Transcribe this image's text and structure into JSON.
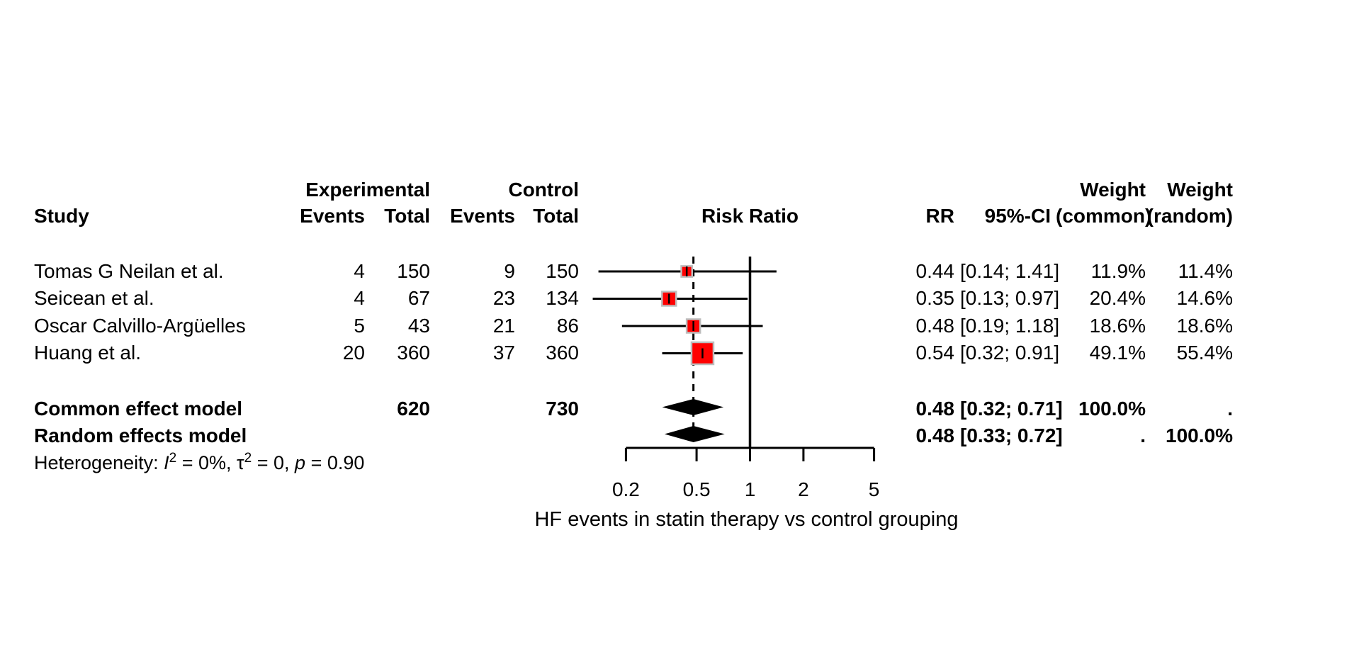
{
  "chart_data": {
    "type": "forest",
    "xlabel": "HF events in statin therapy vs control grouping",
    "x_ticks": [
      0.2,
      0.5,
      1,
      2,
      5
    ],
    "x_scale": "log",
    "null_value": 1,
    "pooled_rr": 0.48,
    "headers": {
      "study": "Study",
      "experimental": "Experimental",
      "control": "Control",
      "events": "Events",
      "total": "Total",
      "risk_ratio": "Risk Ratio",
      "rr": "RR",
      "ci": "95%-CI",
      "weight": "Weight",
      "weight_common_sub": "(common)",
      "weight_random_sub": "(random)"
    },
    "studies": [
      {
        "name": "Tomas G Neilan et al.",
        "exp_events": "4",
        "exp_total": "150",
        "ctrl_events": "9",
        "ctrl_total": "150",
        "rr": 0.44,
        "ci_lo": 0.14,
        "ci_hi": 1.41,
        "rr_text": "0.44",
        "ci_text": "[0.14; 1.41]",
        "weight_common": "11.9%",
        "weight_random": "11.4%",
        "weight_common_value": 11.9
      },
      {
        "name": "Seicean et al.",
        "exp_events": "4",
        "exp_total": "67",
        "ctrl_events": "23",
        "ctrl_total": "134",
        "rr": 0.35,
        "ci_lo": 0.13,
        "ci_hi": 0.97,
        "rr_text": "0.35",
        "ci_text": "[0.13; 0.97]",
        "weight_common": "20.4%",
        "weight_random": "14.6%",
        "weight_common_value": 20.4
      },
      {
        "name": "Oscar Calvillo-Argüelles",
        "exp_events": "5",
        "exp_total": "43",
        "ctrl_events": "21",
        "ctrl_total": "86",
        "rr": 0.48,
        "ci_lo": 0.19,
        "ci_hi": 1.18,
        "rr_text": "0.48",
        "ci_text": "[0.19; 1.18]",
        "weight_common": "18.6%",
        "weight_random": "18.6%",
        "weight_common_value": 18.6
      },
      {
        "name": "Huang et al.",
        "exp_events": "20",
        "exp_total": "360",
        "ctrl_events": "37",
        "ctrl_total": "360",
        "rr": 0.54,
        "ci_lo": 0.32,
        "ci_hi": 0.91,
        "rr_text": "0.54",
        "ci_text": "[0.32; 0.91]",
        "weight_common": "49.1%",
        "weight_random": "55.4%",
        "weight_common_value": 49.1
      }
    ],
    "summary": [
      {
        "name": "Common effect model",
        "exp_total": "620",
        "ctrl_total": "730",
        "rr": 0.48,
        "ci_lo": 0.32,
        "ci_hi": 0.71,
        "rr_text": "0.48",
        "ci_text": "[0.32; 0.71]",
        "weight_common": "100.0%",
        "weight_random": "."
      },
      {
        "name": "Random effects model",
        "exp_total": "",
        "ctrl_total": "",
        "rr": 0.48,
        "ci_lo": 0.33,
        "ci_hi": 0.72,
        "rr_text": "0.48",
        "ci_text": "[0.33; 0.72]",
        "weight_common": ".",
        "weight_random": "100.0%"
      }
    ],
    "heterogeneity": {
      "prefix": "Heterogeneity: ",
      "i_sym": "I",
      "i_sup": "2",
      "seg1": " = 0%, ",
      "tau_sym": "τ",
      "tau_sup": "2",
      "seg2": " = 0, ",
      "p_sym": "p",
      "seg3": " = 0.90"
    },
    "colors": {
      "square_fill": "#FF0000",
      "square_border": "#BDBDBD",
      "line": "#000000",
      "background": "#FFFFFF"
    }
  }
}
